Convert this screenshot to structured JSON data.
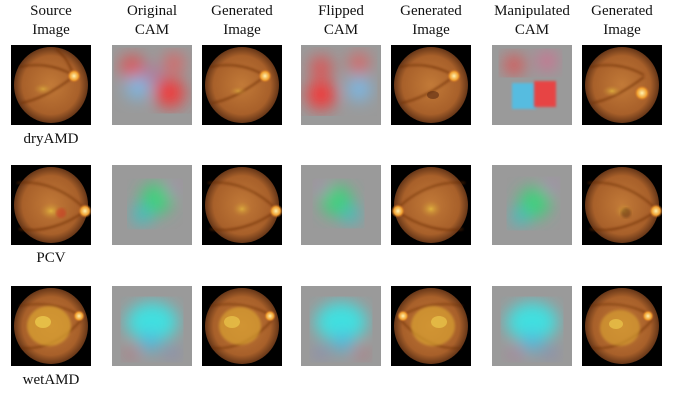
{
  "columns": [
    {
      "line1": "Source",
      "line2": "Image"
    },
    {
      "line1": "Original",
      "line2": "CAM"
    },
    {
      "line1": "Generated",
      "line2": "Image"
    },
    {
      "line1": "Flipped",
      "line2": "CAM"
    },
    {
      "line1": "Generated",
      "line2": "Image"
    },
    {
      "line1": "Manipulated",
      "line2": "CAM"
    },
    {
      "line1": "Generated",
      "line2": "Image"
    }
  ],
  "rows": [
    {
      "label": "dryAMD"
    },
    {
      "label": "PCV"
    },
    {
      "label": "wetAMD"
    }
  ],
  "colors": {
    "fundus_base": "#a8602a",
    "fundus_dark": "#4a2410",
    "cam_gray": "#9a9a9a",
    "cam_red": "#f03a3a",
    "cam_blue": "#7ab8e6",
    "cam_green": "#3fd07a",
    "cam_cyan": "#40e0e0"
  }
}
